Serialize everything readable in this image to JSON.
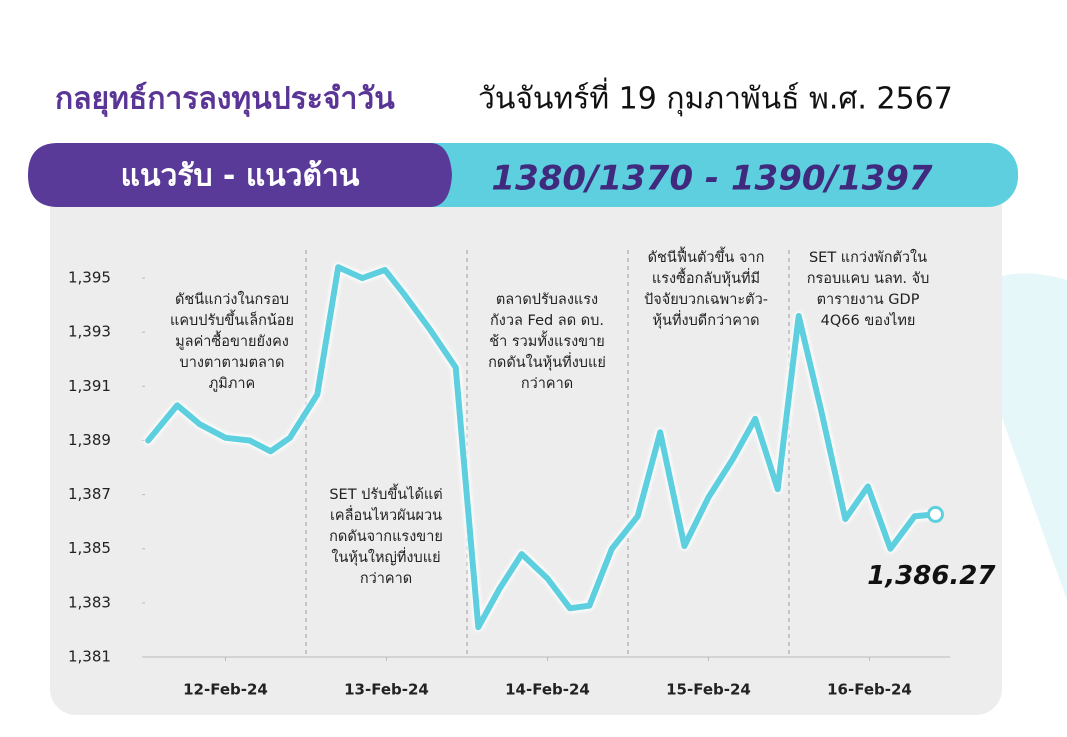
{
  "header": {
    "title": "กลยุทธ์การลงทุนประจำวัน",
    "date": "วันจันทร์ที่ 19 กุมภาพันธ์ พ.ศ. 2567"
  },
  "banner": {
    "label": "แนวรับ - แนวต้าน",
    "value": "1380/1370 - 1390/1397"
  },
  "chart_data": {
    "type": "line",
    "color": "#5ecfde",
    "xlim": [
      0,
      5
    ],
    "xticks": [
      {
        "value": 0.5,
        "label": "12-Feb-24"
      },
      {
        "value": 1.5,
        "label": "13-Feb-24"
      },
      {
        "value": 2.5,
        "label": "14-Feb-24"
      },
      {
        "value": 3.5,
        "label": "15-Feb-24"
      },
      {
        "value": 4.5,
        "label": "16-Feb-24"
      }
    ],
    "ylim": [
      1381,
      1396
    ],
    "yticks": [
      {
        "value": 1381,
        "label": "1,381"
      },
      {
        "value": 1383,
        "label": "1,383"
      },
      {
        "value": 1385,
        "label": "1,385"
      },
      {
        "value": 1387,
        "label": "1,387"
      },
      {
        "value": 1389,
        "label": "1,389"
      },
      {
        "value": 1391,
        "label": "1,391"
      },
      {
        "value": 1393,
        "label": "1,393"
      },
      {
        "value": 1395,
        "label": "1,395"
      }
    ],
    "x": [
      0.02,
      0.2,
      0.34,
      0.5,
      0.65,
      0.78,
      0.9,
      1.07,
      1.2,
      1.35,
      1.49,
      1.61,
      1.77,
      1.93,
      2.07,
      2.2,
      2.34,
      2.5,
      2.64,
      2.76,
      2.9,
      3.06,
      3.2,
      3.35,
      3.5,
      3.65,
      3.79,
      3.93,
      4.06,
      4.2,
      4.35,
      4.49,
      4.63,
      4.78,
      4.91
    ],
    "values": [
      1389.0,
      1390.3,
      1389.6,
      1389.1,
      1389.0,
      1388.6,
      1389.1,
      1390.7,
      1395.4,
      1395.0,
      1395.3,
      1394.4,
      1393.1,
      1391.7,
      1382.1,
      1383.5,
      1384.8,
      1383.9,
      1382.8,
      1382.9,
      1385.0,
      1386.2,
      1389.3,
      1385.1,
      1386.9,
      1388.3,
      1389.8,
      1387.2,
      1393.6,
      1390.1,
      1386.1,
      1387.3,
      1385.0,
      1386.2,
      1386.27
    ],
    "value_labels": [
      null,
      null,
      null,
      null,
      null,
      null,
      null,
      null,
      null,
      null,
      null,
      null,
      null,
      null,
      null,
      null,
      null,
      null,
      null,
      null,
      null,
      null,
      null,
      null,
      null,
      null,
      null,
      null,
      null,
      null,
      null,
      null,
      null,
      null,
      "1,386.27"
    ],
    "annotations": [
      [
        "ดัชนีแกว่งในกรอบ",
        "แคบปรับขึ้นเล็กน้อย",
        "มูลค่าซื้อขายยังคง",
        "บางตาตามตลาด",
        "ภูมิภาค"
      ],
      [
        "SET ปรับขึ้นได้แต่",
        "เคลื่อนไหวผันผวน",
        "กดดันจากแรงขาย",
        "ในหุ้นใหญ่ที่งบแย่",
        "กว่าคาด"
      ],
      [
        "ตลาดปรับลงแรง",
        "กังวล Fed ลด ดบ.",
        "ช้า รวมทั้งแรงขาย",
        "กดดันในหุ้นที่งบแย่",
        "กว่าคาด"
      ],
      [
        "ดัชนีฟื้นตัวขึ้น จาก",
        "แรงซื้อกลับหุ้นที่มี",
        "ปัจจัยบวกเฉพาะตัว-",
        "หุ้นที่งบดีกว่าคาด"
      ],
      [
        "SET แกว่งพักตัวใน",
        "กรอบแคบ นลท. จับ",
        "ตารายงาน GDP",
        "4Q66 ของไทย"
      ]
    ]
  }
}
